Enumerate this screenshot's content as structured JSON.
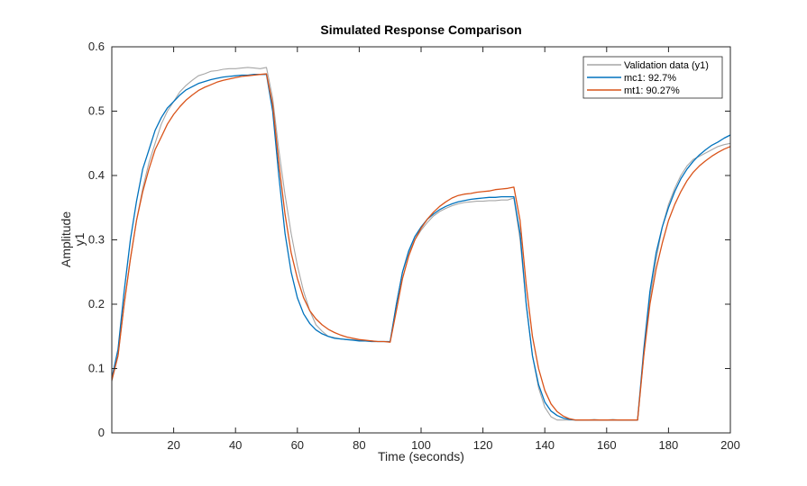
{
  "chart_data": {
    "type": "line",
    "title": "Simulated Response Comparison",
    "xlabel": "Time (seconds)",
    "ylabel": "Amplitude",
    "ylabel2": "y1",
    "xlim": [
      0,
      200
    ],
    "ylim": [
      0,
      0.6
    ],
    "xticks": [
      20,
      40,
      60,
      80,
      100,
      120,
      140,
      160,
      180,
      200
    ],
    "yticks": [
      0,
      0.1,
      0.2,
      0.3,
      0.4,
      0.5,
      0.6
    ],
    "ytick_labels": [
      "0",
      "0.1",
      "0.2",
      "0.3",
      "0.4",
      "0.5",
      "0.6"
    ],
    "grid": false,
    "legend_position": "top-right",
    "series": [
      {
        "name": "Validation data (y1)",
        "color": "#a6a6a6",
        "x": [
          0,
          2,
          4,
          6,
          8,
          10,
          12,
          14,
          16,
          18,
          20,
          22,
          24,
          26,
          28,
          30,
          32,
          34,
          36,
          38,
          40,
          42,
          44,
          46,
          48,
          50,
          52,
          54,
          56,
          58,
          60,
          62,
          64,
          66,
          68,
          70,
          72,
          74,
          76,
          78,
          80,
          82,
          84,
          86,
          88,
          90,
          92,
          94,
          96,
          98,
          100,
          102,
          104,
          106,
          108,
          110,
          112,
          114,
          116,
          118,
          120,
          122,
          124,
          126,
          128,
          130,
          132,
          134,
          136,
          138,
          140,
          142,
          144,
          146,
          148,
          150,
          152,
          154,
          156,
          158,
          160,
          162,
          164,
          166,
          168,
          170,
          172,
          174,
          176,
          178,
          180,
          182,
          184,
          186,
          188,
          190,
          192,
          194,
          196,
          198,
          200
        ],
        "values": [
          0.08,
          0.12,
          0.2,
          0.27,
          0.33,
          0.38,
          0.42,
          0.45,
          0.48,
          0.5,
          0.515,
          0.53,
          0.54,
          0.548,
          0.555,
          0.558,
          0.562,
          0.563,
          0.565,
          0.566,
          0.566,
          0.567,
          0.568,
          0.567,
          0.566,
          0.568,
          0.52,
          0.44,
          0.37,
          0.31,
          0.26,
          0.22,
          0.19,
          0.168,
          0.158,
          0.15,
          0.148,
          0.146,
          0.145,
          0.145,
          0.144,
          0.143,
          0.143,
          0.142,
          0.142,
          0.142,
          0.2,
          0.25,
          0.28,
          0.3,
          0.315,
          0.327,
          0.337,
          0.344,
          0.349,
          0.353,
          0.356,
          0.358,
          0.359,
          0.36,
          0.36,
          0.361,
          0.361,
          0.362,
          0.362,
          0.365,
          0.3,
          0.2,
          0.12,
          0.07,
          0.04,
          0.025,
          0.02,
          0.02,
          0.02,
          0.02,
          0.02,
          0.02,
          0.021,
          0.02,
          0.02,
          0.021,
          0.02,
          0.02,
          0.02,
          0.02,
          0.12,
          0.21,
          0.27,
          0.32,
          0.355,
          0.38,
          0.4,
          0.415,
          0.425,
          0.43,
          0.435,
          0.44,
          0.445,
          0.448,
          0.45
        ]
      },
      {
        "name": "mc1: 92.7%",
        "color": "#0072bd",
        "x": [
          0,
          2,
          4,
          6,
          8,
          10,
          12,
          14,
          16,
          18,
          20,
          22,
          24,
          26,
          28,
          30,
          32,
          34,
          36,
          38,
          40,
          42,
          44,
          46,
          48,
          50,
          52,
          54,
          56,
          58,
          60,
          62,
          64,
          66,
          68,
          70,
          72,
          74,
          76,
          78,
          80,
          82,
          84,
          86,
          88,
          90,
          92,
          94,
          96,
          98,
          100,
          102,
          104,
          106,
          108,
          110,
          112,
          114,
          116,
          118,
          120,
          122,
          124,
          126,
          128,
          130,
          132,
          134,
          136,
          138,
          140,
          142,
          144,
          146,
          148,
          150,
          152,
          154,
          156,
          158,
          160,
          162,
          164,
          166,
          168,
          170,
          172,
          174,
          176,
          178,
          180,
          182,
          184,
          186,
          188,
          190,
          192,
          194,
          196,
          198,
          200
        ],
        "values": [
          0.085,
          0.13,
          0.22,
          0.3,
          0.36,
          0.41,
          0.44,
          0.47,
          0.49,
          0.505,
          0.515,
          0.525,
          0.533,
          0.538,
          0.543,
          0.546,
          0.549,
          0.551,
          0.553,
          0.554,
          0.555,
          0.556,
          0.556,
          0.557,
          0.557,
          0.557,
          0.5,
          0.4,
          0.31,
          0.25,
          0.21,
          0.185,
          0.17,
          0.16,
          0.154,
          0.15,
          0.147,
          0.146,
          0.145,
          0.144,
          0.143,
          0.143,
          0.142,
          0.142,
          0.142,
          0.142,
          0.2,
          0.25,
          0.283,
          0.305,
          0.32,
          0.332,
          0.34,
          0.347,
          0.352,
          0.356,
          0.359,
          0.361,
          0.363,
          0.364,
          0.365,
          0.366,
          0.366,
          0.367,
          0.367,
          0.367,
          0.31,
          0.2,
          0.12,
          0.075,
          0.048,
          0.034,
          0.027,
          0.023,
          0.021,
          0.02,
          0.02,
          0.02,
          0.02,
          0.02,
          0.02,
          0.02,
          0.02,
          0.02,
          0.02,
          0.02,
          0.13,
          0.22,
          0.28,
          0.32,
          0.35,
          0.375,
          0.395,
          0.41,
          0.422,
          0.432,
          0.44,
          0.447,
          0.452,
          0.458,
          0.463
        ]
      },
      {
        "name": "mt1: 90.27%",
        "color": "#d95319",
        "x": [
          0,
          2,
          4,
          6,
          8,
          10,
          12,
          14,
          16,
          18,
          20,
          22,
          24,
          26,
          28,
          30,
          32,
          34,
          36,
          38,
          40,
          42,
          44,
          46,
          48,
          50,
          52,
          54,
          56,
          58,
          60,
          62,
          64,
          66,
          68,
          70,
          72,
          74,
          76,
          78,
          80,
          82,
          84,
          86,
          88,
          90,
          92,
          94,
          96,
          98,
          100,
          102,
          104,
          106,
          108,
          110,
          112,
          114,
          116,
          118,
          120,
          122,
          124,
          126,
          128,
          130,
          132,
          134,
          136,
          138,
          140,
          142,
          144,
          146,
          148,
          150,
          152,
          154,
          156,
          158,
          160,
          162,
          164,
          166,
          168,
          170,
          172,
          174,
          176,
          178,
          180,
          182,
          184,
          186,
          188,
          190,
          192,
          194,
          196,
          198,
          200
        ],
        "values": [
          0.082,
          0.12,
          0.2,
          0.27,
          0.33,
          0.375,
          0.41,
          0.44,
          0.46,
          0.48,
          0.495,
          0.507,
          0.517,
          0.525,
          0.532,
          0.537,
          0.541,
          0.545,
          0.548,
          0.55,
          0.552,
          0.554,
          0.555,
          0.556,
          0.557,
          0.558,
          0.51,
          0.42,
          0.34,
          0.28,
          0.24,
          0.21,
          0.19,
          0.177,
          0.168,
          0.161,
          0.156,
          0.152,
          0.149,
          0.147,
          0.145,
          0.144,
          0.143,
          0.142,
          0.142,
          0.141,
          0.19,
          0.24,
          0.275,
          0.3,
          0.318,
          0.332,
          0.343,
          0.352,
          0.359,
          0.365,
          0.369,
          0.371,
          0.372,
          0.374,
          0.375,
          0.376,
          0.378,
          0.379,
          0.38,
          0.382,
          0.33,
          0.23,
          0.15,
          0.1,
          0.066,
          0.045,
          0.033,
          0.026,
          0.022,
          0.02,
          0.02,
          0.02,
          0.02,
          0.02,
          0.02,
          0.02,
          0.02,
          0.02,
          0.02,
          0.02,
          0.12,
          0.2,
          0.255,
          0.295,
          0.33,
          0.355,
          0.375,
          0.392,
          0.405,
          0.415,
          0.423,
          0.43,
          0.436,
          0.441,
          0.445
        ]
      }
    ]
  }
}
